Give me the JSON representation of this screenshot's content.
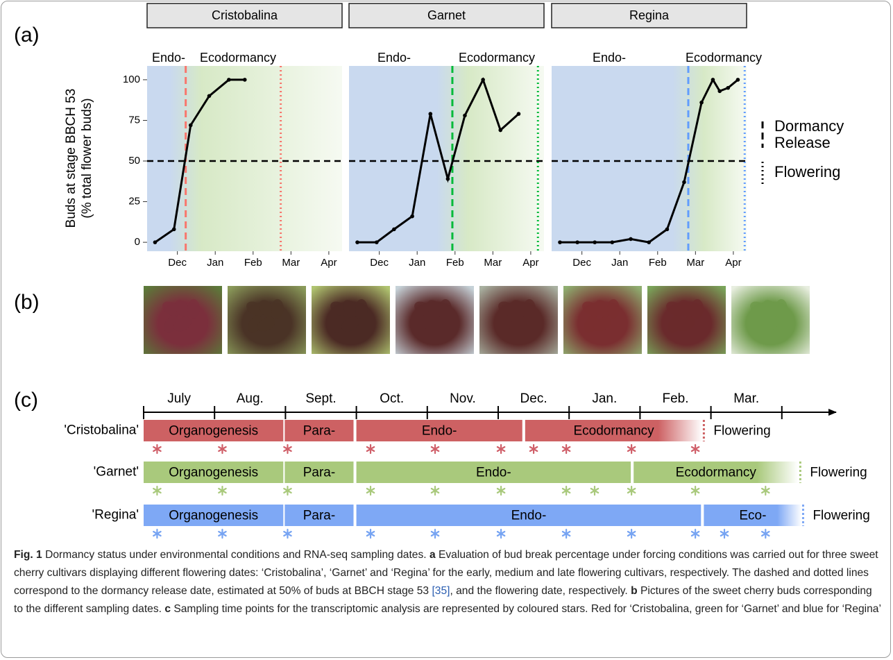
{
  "panel_labels": [
    "(a)",
    "(b)",
    "(c)"
  ],
  "chart_data": {
    "type": "line",
    "y_label": [
      "Buds at stage BBCH 53",
      "(% total flower buds)"
    ],
    "ylim": [
      -5.5,
      108.5
    ],
    "yticks": [
      0,
      25,
      50,
      75,
      100
    ],
    "xlim": [
      11.2,
      16.35
    ],
    "xticks": [
      {
        "value": 12,
        "label": "Dec"
      },
      {
        "value": 13,
        "label": "Jan"
      },
      {
        "value": 14,
        "label": "Feb"
      },
      {
        "value": 15,
        "label": "Mar"
      },
      {
        "value": 16,
        "label": "Apr"
      }
    ],
    "threshold": 50,
    "color": "#000000",
    "legend": {
      "dormancy_release": [
        "Dormancy",
        "Release"
      ],
      "flowering": "Flowering"
    },
    "facets": [
      {
        "title": "Cristobalina",
        "annotations": [
          "Endo-",
          "Ecodormancy"
        ],
        "marker_color": "#f8766d",
        "x": [
          11.41,
          11.91,
          12.35,
          12.84,
          13.36,
          13.78
        ],
        "values": [
          0,
          8,
          72,
          90,
          100,
          100
        ],
        "dormancy_release": 12.22,
        "flowering": 14.73
      },
      {
        "title": "Garnet",
        "annotations": [
          "Endo-",
          "Ecodormancy"
        ],
        "marker_color": "#00ba38",
        "x": [
          11.42,
          11.93,
          12.39,
          12.87,
          13.35,
          13.81,
          14.26,
          14.74,
          15.2,
          15.68
        ],
        "values": [
          0,
          0,
          8,
          16,
          79,
          39,
          78,
          100,
          69,
          79
        ],
        "dormancy_release": 13.93,
        "flowering": 16.19
      },
      {
        "title": "Regina",
        "annotations": [
          "Endo-",
          "Ecodormancy"
        ],
        "marker_color": "#619cff",
        "x": [
          11.42,
          11.88,
          12.34,
          12.8,
          13.29,
          13.77,
          14.25,
          14.7,
          15.16,
          15.46,
          15.64,
          15.86,
          16.12
        ],
        "values": [
          0,
          0,
          0,
          0,
          2,
          0,
          8,
          37,
          86,
          100,
          93,
          95,
          100
        ],
        "dormancy_release": 14.81,
        "flowering": 16.3
      }
    ]
  },
  "timeline": {
    "months": [
      "July",
      "Aug.",
      "Sept.",
      "Oct.",
      "Nov.",
      "Dec.",
      "Jan.",
      "Feb.",
      "Mar."
    ],
    "rows": [
      {
        "name": "'Cristobalina'",
        "color": "#cd6163",
        "star_color": "#d0606a",
        "phases": [
          {
            "label": "Organogenesis",
            "start": 0,
            "end": 1.97
          },
          {
            "label": "Para-",
            "start": 1.99,
            "end": 2.96
          },
          {
            "label": "Endo-",
            "start": 3.0,
            "end": 5.34
          },
          {
            "label": "Ecodormancy",
            "start": 5.38,
            "end": 7.88
          }
        ],
        "flowering": 7.9,
        "end_label": "Flowering",
        "samples": [
          0.19,
          1.11,
          2.03,
          3.2,
          4.11,
          5.04,
          5.5,
          5.96,
          6.88,
          7.78
        ]
      },
      {
        "name": "'Garnet'",
        "color": "#a9c97c",
        "star_color": "#a9c97c",
        "phases": [
          {
            "label": "Organogenesis",
            "start": 0,
            "end": 1.97
          },
          {
            "label": "Para-",
            "start": 1.99,
            "end": 2.96
          },
          {
            "label": "Endo-",
            "start": 3.0,
            "end": 6.87
          },
          {
            "label": "Ecodormancy",
            "start": 6.91,
            "end": 9.23
          }
        ],
        "flowering": 9.26,
        "end_label": "Flowering",
        "samples": [
          0.19,
          1.11,
          2.03,
          3.2,
          4.11,
          5.04,
          5.96,
          6.36,
          6.88,
          7.78,
          8.77
        ]
      },
      {
        "name": "'Regina'",
        "color": "#7ea8f5",
        "star_color": "#77a4f2",
        "phases": [
          {
            "label": "Organogenesis",
            "start": 0,
            "end": 1.97
          },
          {
            "label": "Para-",
            "start": 1.99,
            "end": 2.96
          },
          {
            "label": "Endo-",
            "start": 3.0,
            "end": 7.86
          },
          {
            "label": "Eco-",
            "start": 7.9,
            "end": 9.28
          }
        ],
        "flowering": 9.3,
        "end_label": "Flowering",
        "samples": [
          0.19,
          1.11,
          2.03,
          3.2,
          4.11,
          5.04,
          5.96,
          6.88,
          7.78,
          8.19,
          8.77
        ]
      }
    ]
  },
  "caption": {
    "fig_label": "Fig. 1",
    "title": "Dormancy status under environmental conditions and RNA-seq sampling dates.",
    "parts": [
      {
        "label": "a",
        "text": "Evaluation of bud break percentage under forcing conditions was carried out for three sweet cherry cultivars displaying different flowering dates: ‘Cristobalina’, ‘Garnet’ and ‘Regina’ for the early, medium and late flowering cultivars, respectively. The dashed and dotted lines correspond to the dormancy release date, estimated at 50% of buds at BBCH stage 53",
        "citation": "[35]",
        "text_after": ", and the flowering date, respectively."
      },
      {
        "label": "b",
        "text": "Pictures of the sweet cherry buds corresponding to the different sampling dates."
      },
      {
        "label": "c",
        "text": "Sampling time points for the transcriptomic analysis are represented by coloured stars. Red for ‘Cristobalina, green for ‘Garnet’ and blue for ‘Regina’"
      }
    ]
  }
}
